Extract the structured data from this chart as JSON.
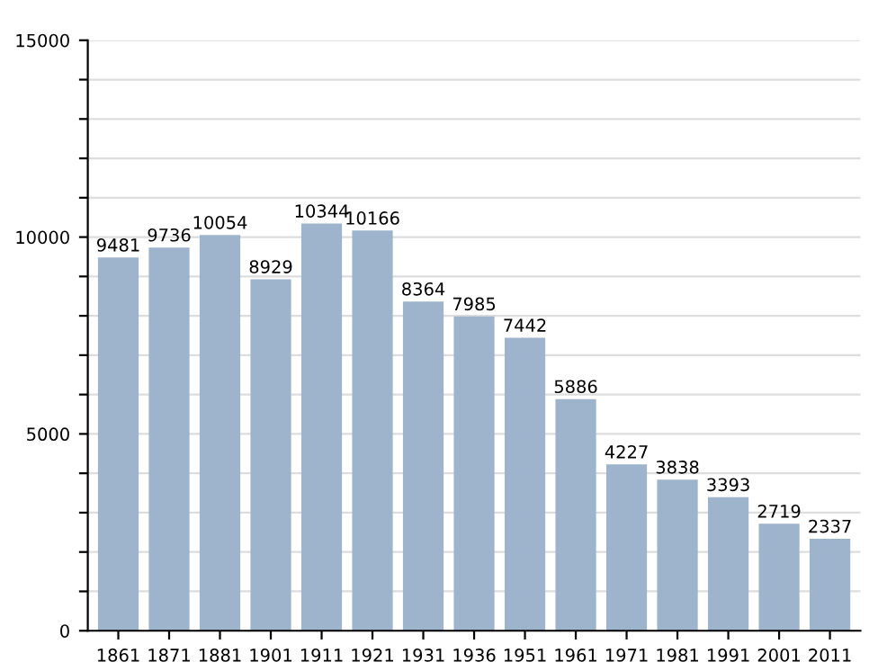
{
  "chart_data": {
    "type": "bar",
    "categories": [
      "1861",
      "1871",
      "1881",
      "1901",
      "1911",
      "1921",
      "1931",
      "1936",
      "1951",
      "1961",
      "1971",
      "1981",
      "1991",
      "2001",
      "2011"
    ],
    "values": [
      9481,
      9736,
      10054,
      8929,
      10344,
      10166,
      8364,
      7985,
      7442,
      5886,
      4227,
      3838,
      3393,
      2719,
      2337
    ],
    "color": "#9db4cc",
    "ylim": [
      0,
      15000
    ],
    "yticks": [
      0,
      {
        "value": 1000,
        "label": null
      },
      {
        "value": 2000,
        "label": null
      },
      {
        "value": 3000,
        "label": null
      },
      {
        "value": 4000,
        "label": null
      },
      5000,
      {
        "value": 6000,
        "label": null
      },
      {
        "value": 7000,
        "label": null
      },
      {
        "value": 8000,
        "label": null
      },
      {
        "value": 9000,
        "label": null
      },
      10000,
      {
        "value": 11000,
        "label": null
      },
      {
        "value": 12000,
        "label": null
      },
      {
        "value": 13000,
        "label": null
      },
      {
        "value": 14000,
        "label": null
      },
      15000
    ],
    "grid": "y",
    "data_labels": true
  }
}
